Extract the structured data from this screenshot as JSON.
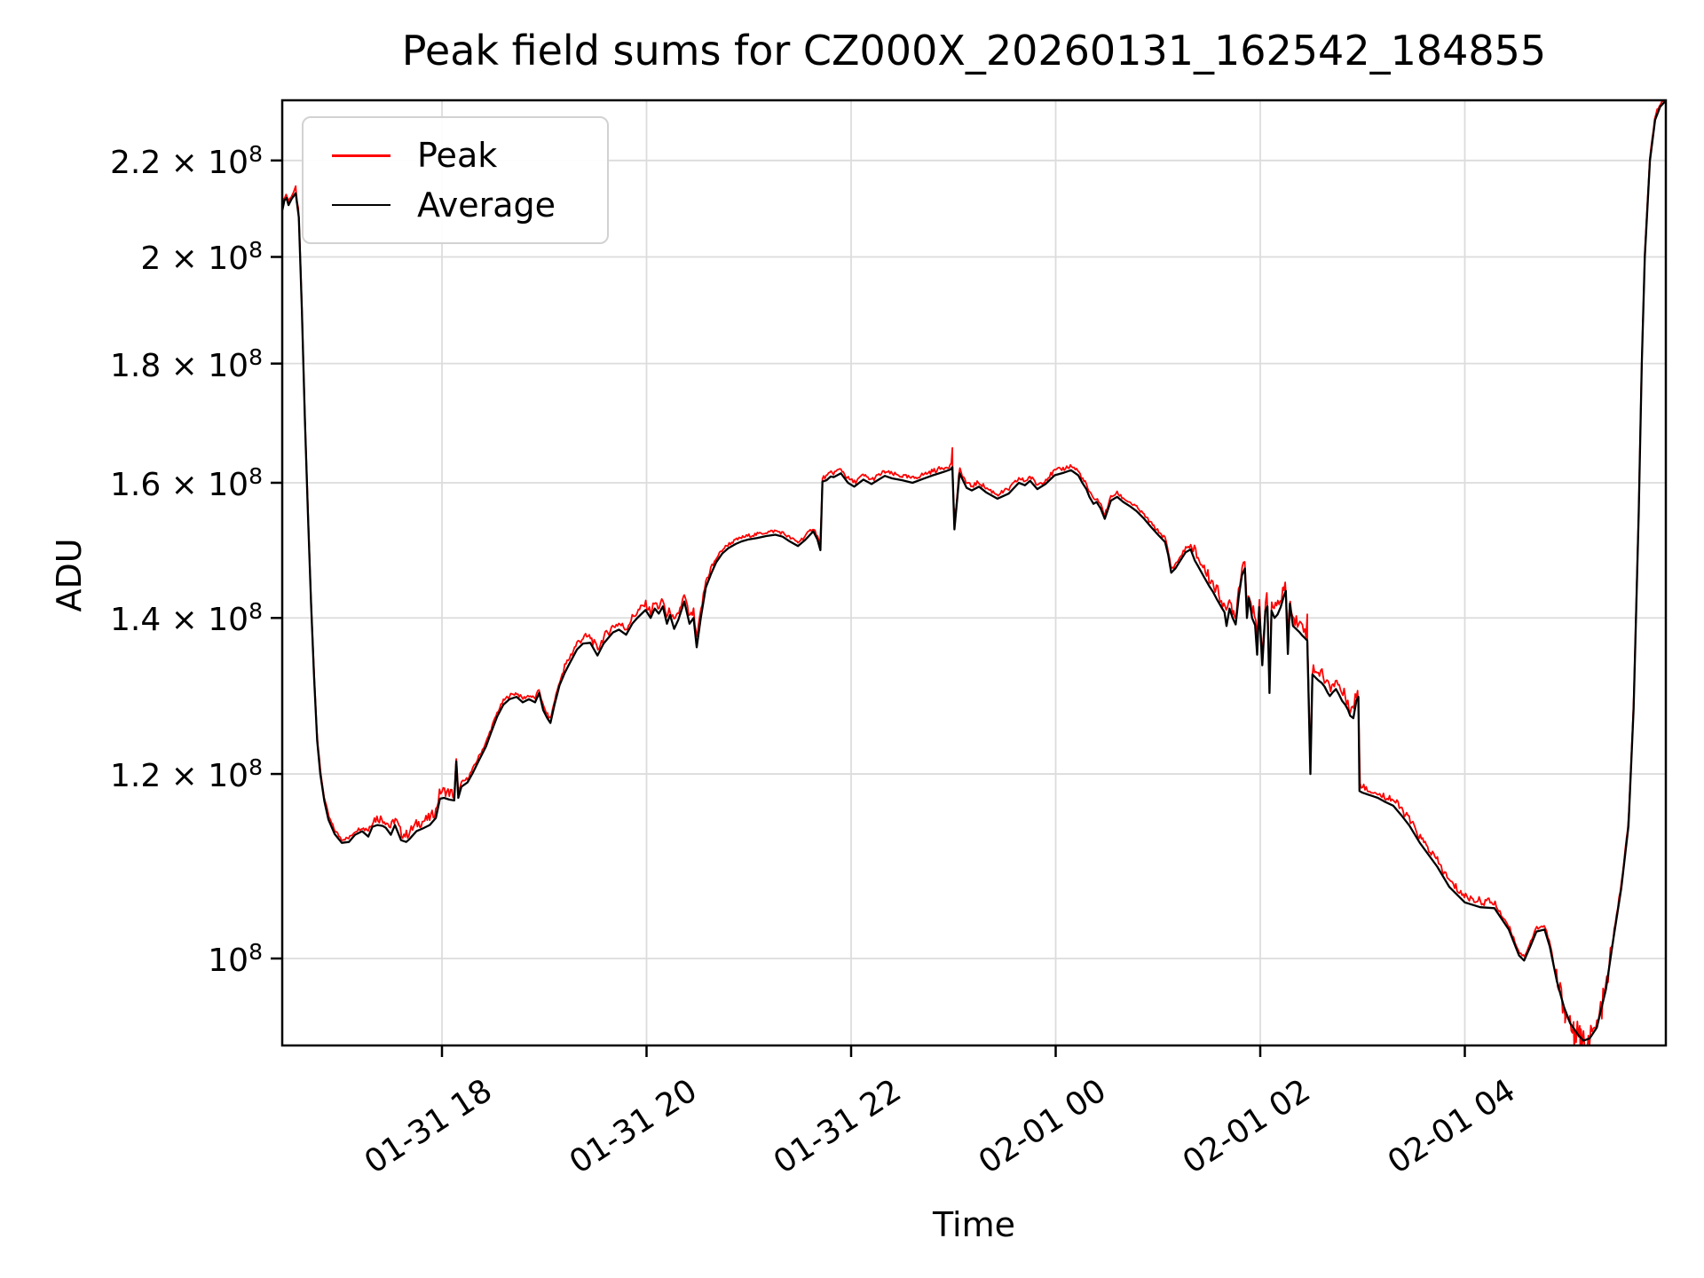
{
  "title": "Peak field sums for CZ000X_20260131_162542_184855",
  "axes": {
    "xlabel": "Time",
    "ylabel": "ADU"
  },
  "legend": {
    "position": "upper left",
    "items": [
      {
        "label": "Peak",
        "color": "#ff0000"
      },
      {
        "label": "Average",
        "color": "#000000"
      }
    ]
  },
  "colors": {
    "grid": "#dcdcdc",
    "frame": "#000000",
    "peak": "#ff0000",
    "average": "#000000"
  },
  "chart_data": {
    "type": "line",
    "title": "Peak field sums for CZ000X_20260131_162542_184855",
    "xlabel": "Time",
    "ylabel": "ADU",
    "y_scale": "log",
    "grid": true,
    "legend_position": "upper left",
    "x_unit": "hours since 2026-01-31 00:00",
    "xlim": [
      16.44,
      29.97
    ],
    "ylim_e8": [
      0.918,
      2.332
    ],
    "x_ticks": [
      {
        "t": 18,
        "label": "01-31 18"
      },
      {
        "t": 20,
        "label": "01-31 20"
      },
      {
        "t": 22,
        "label": "01-31 22"
      },
      {
        "t": 24,
        "label": "02-01 00"
      },
      {
        "t": 26,
        "label": "02-01 02"
      },
      {
        "t": 28,
        "label": "02-01 04"
      }
    ],
    "y_ticks": [
      {
        "value_e8": 2.2,
        "base": "2.2 × 10",
        "sup": "8"
      },
      {
        "value_e8": 2.0,
        "base": "2 × 10",
        "sup": "8"
      },
      {
        "value_e8": 1.8,
        "base": "1.8 × 10",
        "sup": "8"
      },
      {
        "value_e8": 1.6,
        "base": "1.6 × 10",
        "sup": "8"
      },
      {
        "value_e8": 1.4,
        "base": "1.4 × 10",
        "sup": "8"
      },
      {
        "value_e8": 1.2,
        "base": "1.2 × 10",
        "sup": "8"
      },
      {
        "value_e8": 1.0,
        "base": "10",
        "sup": "8"
      }
    ],
    "series": [
      {
        "name": "Average",
        "color": "#000000",
        "units": "ADU (×10^8)",
        "points_e8": [
          [
            16.44,
            2.095
          ],
          [
            16.46,
            2.115
          ],
          [
            16.48,
            2.12
          ],
          [
            16.5,
            2.105
          ],
          [
            16.53,
            2.118
          ],
          [
            16.57,
            2.13
          ],
          [
            16.6,
            2.08
          ],
          [
            16.63,
            1.9
          ],
          [
            16.66,
            1.7
          ],
          [
            16.69,
            1.55
          ],
          [
            16.72,
            1.42
          ],
          [
            16.75,
            1.32
          ],
          [
            16.78,
            1.24
          ],
          [
            16.81,
            1.2
          ],
          [
            16.85,
            1.168
          ],
          [
            16.89,
            1.147
          ],
          [
            16.95,
            1.131
          ],
          [
            17.02,
            1.121
          ],
          [
            17.09,
            1.122
          ],
          [
            17.15,
            1.13
          ],
          [
            17.22,
            1.134
          ],
          [
            17.28,
            1.128
          ],
          [
            17.32,
            1.139
          ],
          [
            17.37,
            1.141
          ],
          [
            17.42,
            1.14
          ],
          [
            17.45,
            1.138
          ],
          [
            17.5,
            1.13
          ],
          [
            17.54,
            1.141
          ],
          [
            17.6,
            1.124
          ],
          [
            17.65,
            1.122
          ],
          [
            17.68,
            1.125
          ],
          [
            17.75,
            1.134
          ],
          [
            17.81,
            1.137
          ],
          [
            17.88,
            1.141
          ],
          [
            17.94,
            1.149
          ],
          [
            17.98,
            1.171
          ],
          [
            18.02,
            1.172
          ],
          [
            18.07,
            1.17
          ],
          [
            18.12,
            1.169
          ],
          [
            18.14,
            1.215
          ],
          [
            18.16,
            1.172
          ],
          [
            18.19,
            1.185
          ],
          [
            18.25,
            1.19
          ],
          [
            18.3,
            1.201
          ],
          [
            18.36,
            1.216
          ],
          [
            18.43,
            1.233
          ],
          [
            18.48,
            1.25
          ],
          [
            18.54,
            1.27
          ],
          [
            18.6,
            1.285
          ],
          [
            18.66,
            1.292
          ],
          [
            18.73,
            1.295
          ],
          [
            18.79,
            1.288
          ],
          [
            18.85,
            1.292
          ],
          [
            18.91,
            1.288
          ],
          [
            18.95,
            1.3
          ],
          [
            18.99,
            1.278
          ],
          [
            19.03,
            1.268
          ],
          [
            19.06,
            1.262
          ],
          [
            19.1,
            1.285
          ],
          [
            19.15,
            1.31
          ],
          [
            19.2,
            1.326
          ],
          [
            19.23,
            1.334
          ],
          [
            19.32,
            1.357
          ],
          [
            19.38,
            1.365
          ],
          [
            19.45,
            1.366
          ],
          [
            19.52,
            1.349
          ],
          [
            19.58,
            1.365
          ],
          [
            19.67,
            1.38
          ],
          [
            19.73,
            1.384
          ],
          [
            19.8,
            1.377
          ],
          [
            19.86,
            1.392
          ],
          [
            19.91,
            1.4
          ],
          [
            19.99,
            1.411
          ],
          [
            20.04,
            1.4
          ],
          [
            20.08,
            1.413
          ],
          [
            20.12,
            1.406
          ],
          [
            20.16,
            1.416
          ],
          [
            20.2,
            1.392
          ],
          [
            20.23,
            1.404
          ],
          [
            20.27,
            1.385
          ],
          [
            20.31,
            1.397
          ],
          [
            20.37,
            1.423
          ],
          [
            20.42,
            1.392
          ],
          [
            20.46,
            1.4
          ],
          [
            20.49,
            1.36
          ],
          [
            20.53,
            1.4
          ],
          [
            20.58,
            1.443
          ],
          [
            20.63,
            1.462
          ],
          [
            20.68,
            1.479
          ],
          [
            20.74,
            1.492
          ],
          [
            20.8,
            1.5
          ],
          [
            20.87,
            1.506
          ],
          [
            20.93,
            1.51
          ],
          [
            21.0,
            1.513
          ],
          [
            21.08,
            1.515
          ],
          [
            21.17,
            1.518
          ],
          [
            21.26,
            1.52
          ],
          [
            21.33,
            1.517
          ],
          [
            21.4,
            1.51
          ],
          [
            21.48,
            1.503
          ],
          [
            21.55,
            1.512
          ],
          [
            21.63,
            1.525
          ],
          [
            21.67,
            1.513
          ],
          [
            21.7,
            1.497
          ],
          [
            21.72,
            1.602
          ],
          [
            21.76,
            1.604
          ],
          [
            21.8,
            1.61
          ],
          [
            21.83,
            1.609
          ],
          [
            21.9,
            1.615
          ],
          [
            21.97,
            1.6
          ],
          [
            22.03,
            1.594
          ],
          [
            22.12,
            1.605
          ],
          [
            22.2,
            1.598
          ],
          [
            22.27,
            1.605
          ],
          [
            22.33,
            1.611
          ],
          [
            22.4,
            1.607
          ],
          [
            22.5,
            1.604
          ],
          [
            22.6,
            1.6
          ],
          [
            22.7,
            1.606
          ],
          [
            22.8,
            1.612
          ],
          [
            22.9,
            1.617
          ],
          [
            22.97,
            1.621
          ],
          [
            22.99,
            1.625
          ],
          [
            23.01,
            1.528
          ],
          [
            23.06,
            1.615
          ],
          [
            23.13,
            1.592
          ],
          [
            23.18,
            1.588
          ],
          [
            23.25,
            1.594
          ],
          [
            23.32,
            1.585
          ],
          [
            23.43,
            1.575
          ],
          [
            23.54,
            1.583
          ],
          [
            23.64,
            1.6
          ],
          [
            23.7,
            1.596
          ],
          [
            23.75,
            1.603
          ],
          [
            23.82,
            1.59
          ],
          [
            23.9,
            1.598
          ],
          [
            23.99,
            1.612
          ],
          [
            24.08,
            1.616
          ],
          [
            24.15,
            1.62
          ],
          [
            24.22,
            1.612
          ],
          [
            24.26,
            1.6
          ],
          [
            24.3,
            1.59
          ],
          [
            24.33,
            1.578
          ],
          [
            24.37,
            1.567
          ],
          [
            24.4,
            1.57
          ],
          [
            24.44,
            1.56
          ],
          [
            24.48,
            1.544
          ],
          [
            24.54,
            1.572
          ],
          [
            24.6,
            1.578
          ],
          [
            24.66,
            1.57
          ],
          [
            24.73,
            1.563
          ],
          [
            24.79,
            1.556
          ],
          [
            24.86,
            1.545
          ],
          [
            24.93,
            1.532
          ],
          [
            25.0,
            1.52
          ],
          [
            25.07,
            1.509
          ],
          [
            25.1,
            1.49
          ],
          [
            25.13,
            1.464
          ],
          [
            25.17,
            1.47
          ],
          [
            25.22,
            1.482
          ],
          [
            25.27,
            1.494
          ],
          [
            25.32,
            1.498
          ],
          [
            25.36,
            1.482
          ],
          [
            25.39,
            1.474
          ],
          [
            25.45,
            1.458
          ],
          [
            25.5,
            1.445
          ],
          [
            25.54,
            1.436
          ],
          [
            25.58,
            1.425
          ],
          [
            25.62,
            1.415
          ],
          [
            25.65,
            1.408
          ],
          [
            25.67,
            1.389
          ],
          [
            25.7,
            1.413
          ],
          [
            25.73,
            1.4
          ],
          [
            25.76,
            1.391
          ],
          [
            25.79,
            1.43
          ],
          [
            25.82,
            1.46
          ],
          [
            25.85,
            1.47
          ],
          [
            25.87,
            1.4
          ],
          [
            25.89,
            1.428
          ],
          [
            25.92,
            1.4
          ],
          [
            25.95,
            1.39
          ],
          [
            25.97,
            1.35
          ],
          [
            25.99,
            1.415
          ],
          [
            26.02,
            1.336
          ],
          [
            26.05,
            1.41
          ],
          [
            26.07,
            1.416
          ],
          [
            26.09,
            1.3
          ],
          [
            26.11,
            1.41
          ],
          [
            26.14,
            1.4
          ],
          [
            26.17,
            1.405
          ],
          [
            26.2,
            1.415
          ],
          [
            26.23,
            1.43
          ],
          [
            26.25,
            1.438
          ],
          [
            26.27,
            1.351
          ],
          [
            26.29,
            1.42
          ],
          [
            26.32,
            1.389
          ],
          [
            26.35,
            1.385
          ],
          [
            26.38,
            1.381
          ],
          [
            26.41,
            1.376
          ],
          [
            26.44,
            1.372
          ],
          [
            26.46,
            1.369
          ],
          [
            26.49,
            1.2
          ],
          [
            26.51,
            1.324
          ],
          [
            26.54,
            1.32
          ],
          [
            26.57,
            1.316
          ],
          [
            26.6,
            1.313
          ],
          [
            26.63,
            1.308
          ],
          [
            26.66,
            1.3
          ],
          [
            26.68,
            1.296
          ],
          [
            26.71,
            1.301
          ],
          [
            26.74,
            1.305
          ],
          [
            26.77,
            1.298
          ],
          [
            26.8,
            1.29
          ],
          [
            26.83,
            1.285
          ],
          [
            26.86,
            1.278
          ],
          [
            26.88,
            1.271
          ],
          [
            26.91,
            1.268
          ],
          [
            26.94,
            1.29
          ],
          [
            26.96,
            1.295
          ],
          [
            26.97,
            1.18
          ],
          [
            27.0,
            1.178
          ],
          [
            27.05,
            1.176
          ],
          [
            27.1,
            1.174
          ],
          [
            27.15,
            1.172
          ],
          [
            27.21,
            1.168
          ],
          [
            27.3,
            1.163
          ],
          [
            27.38,
            1.152
          ],
          [
            27.46,
            1.14
          ],
          [
            27.56,
            1.121
          ],
          [
            27.73,
            1.095
          ],
          [
            27.85,
            1.073
          ],
          [
            28.0,
            1.057
          ],
          [
            28.15,
            1.052
          ],
          [
            28.29,
            1.051
          ],
          [
            28.43,
            1.029
          ],
          [
            28.53,
            1.003
          ],
          [
            28.58,
            0.998
          ],
          [
            28.64,
            1.012
          ],
          [
            28.7,
            1.027
          ],
          [
            28.78,
            1.029
          ],
          [
            28.83,
            1.012
          ],
          [
            28.9,
            0.978
          ],
          [
            28.97,
            0.953
          ],
          [
            29.03,
            0.938
          ],
          [
            29.11,
            0.927
          ],
          [
            29.16,
            0.922
          ],
          [
            29.22,
            0.924
          ],
          [
            29.29,
            0.934
          ],
          [
            29.38,
            0.97
          ],
          [
            29.45,
            1.018
          ],
          [
            29.53,
            1.072
          ],
          [
            29.6,
            1.14
          ],
          [
            29.65,
            1.28
          ],
          [
            29.7,
            1.55
          ],
          [
            29.73,
            1.8
          ],
          [
            29.76,
            2.0
          ],
          [
            29.81,
            2.2
          ],
          [
            29.86,
            2.29
          ],
          [
            29.91,
            2.32
          ],
          [
            29.97,
            2.335
          ]
        ]
      },
      {
        "name": "Peak",
        "color": "#ff0000",
        "units": "ADU (×10^8)",
        "derived_from": "Average",
        "base_offset_frac": 0.002,
        "base_noise_amp_frac": 0.0035,
        "sample_step_hours": 0.012,
        "noise_zones": [
          [
            17.25,
            18.1,
            0.01
          ],
          [
            19.2,
            20.65,
            0.008
          ],
          [
            21.8,
            24.4,
            0.0045
          ],
          [
            25.35,
            27.05,
            0.013
          ],
          [
            27.2,
            28.3,
            0.008
          ],
          [
            28.85,
            29.45,
            0.016
          ]
        ],
        "bipolar_zones": [
          [
            28.85,
            29.45
          ]
        ],
        "spikes_e8": [
          [
            16.57,
            2.145
          ],
          [
            18.14,
            1.218
          ],
          [
            20.37,
            1.432
          ],
          [
            22.99,
            1.656
          ],
          [
            24.15,
            1.627
          ],
          [
            25.7,
            1.425
          ],
          [
            26.23,
            1.443
          ],
          [
            26.46,
            1.405
          ],
          [
            28.98,
            0.945
          ],
          [
            29.07,
            0.913
          ],
          [
            29.13,
            0.914
          ],
          [
            29.19,
            0.916
          ]
        ]
      }
    ]
  },
  "layout_note": "log-scale line chart, matplotlib style"
}
